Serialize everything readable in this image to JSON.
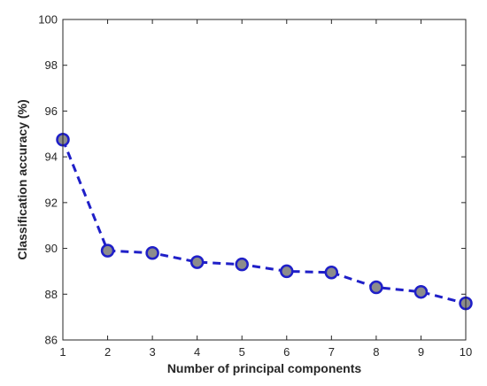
{
  "chart_data": {
    "type": "line",
    "xlabel": "Number of principal components",
    "ylabel": "Classification accuracy (%)",
    "xlim": [
      1,
      10
    ],
    "ylim": [
      86,
      100
    ],
    "xticks": [
      "1",
      "2",
      "3",
      "4",
      "5",
      "6",
      "7",
      "8",
      "9",
      "10"
    ],
    "yticks": [
      "86",
      "88",
      "90",
      "92",
      "94",
      "96",
      "98",
      "100"
    ],
    "grid": false,
    "series": [
      {
        "x": [
          1,
          2,
          3,
          4,
          5,
          6,
          7,
          8,
          9,
          10
        ],
        "values": [
          94.75,
          89.9,
          89.8,
          89.4,
          89.3,
          89.0,
          88.95,
          88.3,
          88.1,
          87.6
        ],
        "line_style": "dashed",
        "line_color": "#1f1fc8",
        "marker": "circle",
        "marker_fill": "#8c8c8c",
        "marker_edge": "#1f1fc8"
      }
    ]
  }
}
